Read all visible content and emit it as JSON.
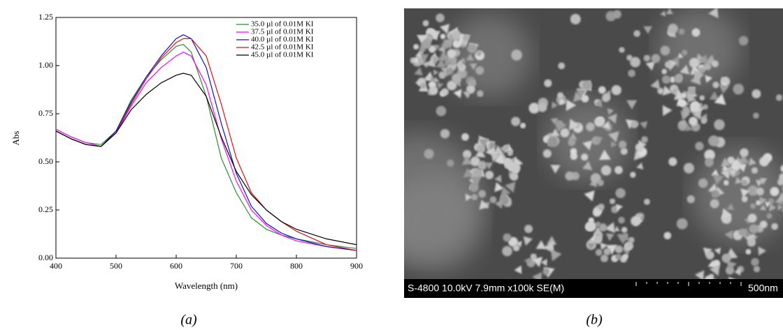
{
  "chart_data": {
    "type": "line",
    "x_label": "Wavelength (nm)",
    "y_label": "Abs",
    "x": [
      400,
      425,
      450,
      475,
      500,
      525,
      550,
      575,
      600,
      612,
      625,
      650,
      675,
      700,
      725,
      750,
      775,
      800,
      850,
      900
    ],
    "series": [
      {
        "name": "35.0 µl of 0.01M KI",
        "color": "#2e8b2e",
        "values": [
          0.67,
          0.63,
          0.6,
          0.59,
          0.66,
          0.82,
          0.94,
          1.03,
          1.1,
          1.11,
          1.07,
          0.84,
          0.52,
          0.34,
          0.21,
          0.15,
          0.12,
          0.1,
          0.07,
          0.05
        ]
      },
      {
        "name": "37.5 µl of 0.01M KI",
        "color": "#ff00ff",
        "values": [
          0.67,
          0.63,
          0.6,
          0.58,
          0.65,
          0.79,
          0.91,
          0.99,
          1.05,
          1.07,
          1.05,
          0.9,
          0.62,
          0.4,
          0.25,
          0.17,
          0.12,
          0.09,
          0.06,
          0.04
        ]
      },
      {
        "name": "40.0 µl of 0.01M KI",
        "color": "#1010d0",
        "values": [
          0.66,
          0.62,
          0.59,
          0.58,
          0.66,
          0.81,
          0.94,
          1.05,
          1.14,
          1.16,
          1.14,
          0.99,
          0.7,
          0.44,
          0.27,
          0.18,
          0.13,
          0.1,
          0.06,
          0.04
        ]
      },
      {
        "name": "42.5 µl of 0.01M KI",
        "color": "#e01010",
        "values": [
          0.66,
          0.62,
          0.59,
          0.58,
          0.65,
          0.8,
          0.93,
          1.04,
          1.12,
          1.14,
          1.14,
          1.05,
          0.8,
          0.52,
          0.34,
          0.25,
          0.19,
          0.14,
          0.07,
          0.04
        ]
      },
      {
        "name": "45.0 µl of 0.01M KI",
        "color": "#000000",
        "values": [
          0.66,
          0.62,
          0.59,
          0.58,
          0.65,
          0.77,
          0.85,
          0.91,
          0.95,
          0.96,
          0.95,
          0.84,
          0.63,
          0.45,
          0.33,
          0.25,
          0.19,
          0.15,
          0.1,
          0.07
        ]
      }
    ],
    "xlim": [
      400,
      900
    ],
    "xticks": [
      400,
      500,
      600,
      700,
      800,
      900
    ],
    "ylim": [
      0,
      1.25
    ],
    "yticks": [
      {
        "value": 0,
        "label": "0.00"
      },
      {
        "value": 0.25,
        "label": "0.25"
      },
      {
        "value": 0.5,
        "label": "0.50"
      },
      {
        "value": 0.75,
        "label": "0.75"
      },
      {
        "value": 1,
        "label": "1.00"
      },
      {
        "value": 1.25,
        "label": "1.25"
      }
    ],
    "legend": "upper right"
  },
  "sem_image": {
    "info": "S-4800 10.0kV 7.9mm x100k SE(M)",
    "scale": "500nm"
  },
  "captions": [
    "(a)",
    "(b)"
  ]
}
